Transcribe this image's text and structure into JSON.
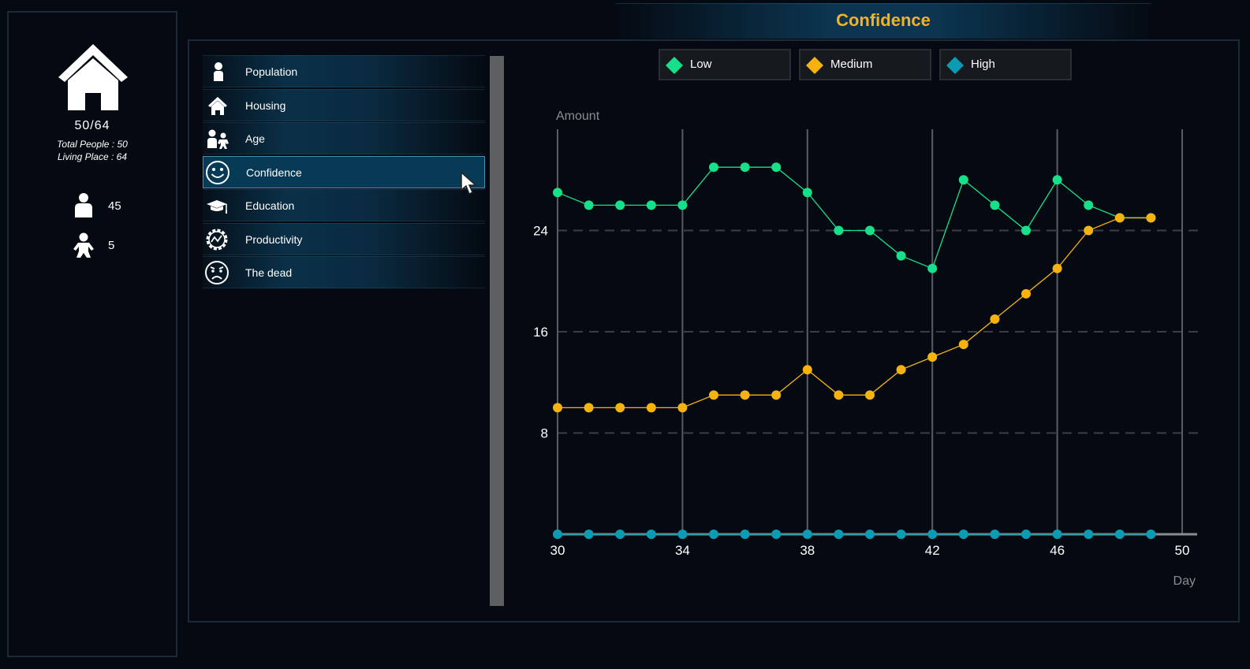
{
  "window": {
    "title": "Confidence"
  },
  "summary": {
    "ratio": "50/64",
    "total_people_label": "Total People :",
    "total_people_value": "50",
    "living_place_label": "Living Place :",
    "living_place_value": "64",
    "adults": "45",
    "children": "5"
  },
  "menu": {
    "items": [
      {
        "label": "Population",
        "icon": "person-icon"
      },
      {
        "label": "Housing",
        "icon": "house-icon"
      },
      {
        "label": "Age",
        "icon": "adult-child-icon"
      },
      {
        "label": "Confidence",
        "icon": "smiley-icon",
        "active": true
      },
      {
        "label": "Education",
        "icon": "graduation-cap-icon"
      },
      {
        "label": "Productivity",
        "icon": "gear-chart-icon"
      },
      {
        "label": "The dead",
        "icon": "sad-face-icon"
      }
    ]
  },
  "legend": {
    "low": "Low",
    "medium": "Medium",
    "high": "High"
  },
  "colors": {
    "low": "#17e08a",
    "medium": "#f6b20e",
    "high": "#0b9bb2",
    "accent": "#f0b323"
  },
  "chart_data": {
    "type": "line",
    "xlabel": "Day",
    "ylabel": "Amount",
    "xlim": [
      30,
      50
    ],
    "ylim": [
      0,
      32
    ],
    "xticks": [
      30,
      34,
      38,
      42,
      46,
      50
    ],
    "yticks": [
      8,
      16,
      24
    ],
    "x": [
      30,
      31,
      32,
      33,
      34,
      35,
      36,
      37,
      38,
      39,
      40,
      41,
      42,
      43,
      44,
      45,
      46,
      47,
      48,
      49
    ],
    "series": [
      {
        "name": "Low",
        "values": [
          27,
          26,
          26,
          26,
          26,
          29,
          29,
          29,
          27,
          24,
          24,
          22,
          21,
          28,
          26,
          24,
          28,
          26,
          25,
          25
        ]
      },
      {
        "name": "Medium",
        "values": [
          10,
          10,
          10,
          10,
          10,
          11,
          11,
          11,
          13,
          11,
          11,
          13,
          14,
          15,
          17,
          19,
          21,
          24,
          25,
          25
        ]
      },
      {
        "name": "High",
        "values": [
          0,
          0,
          0,
          0,
          0,
          0,
          0,
          0,
          0,
          0,
          0,
          0,
          0,
          0,
          0,
          0,
          0,
          0,
          0,
          0
        ]
      }
    ]
  }
}
